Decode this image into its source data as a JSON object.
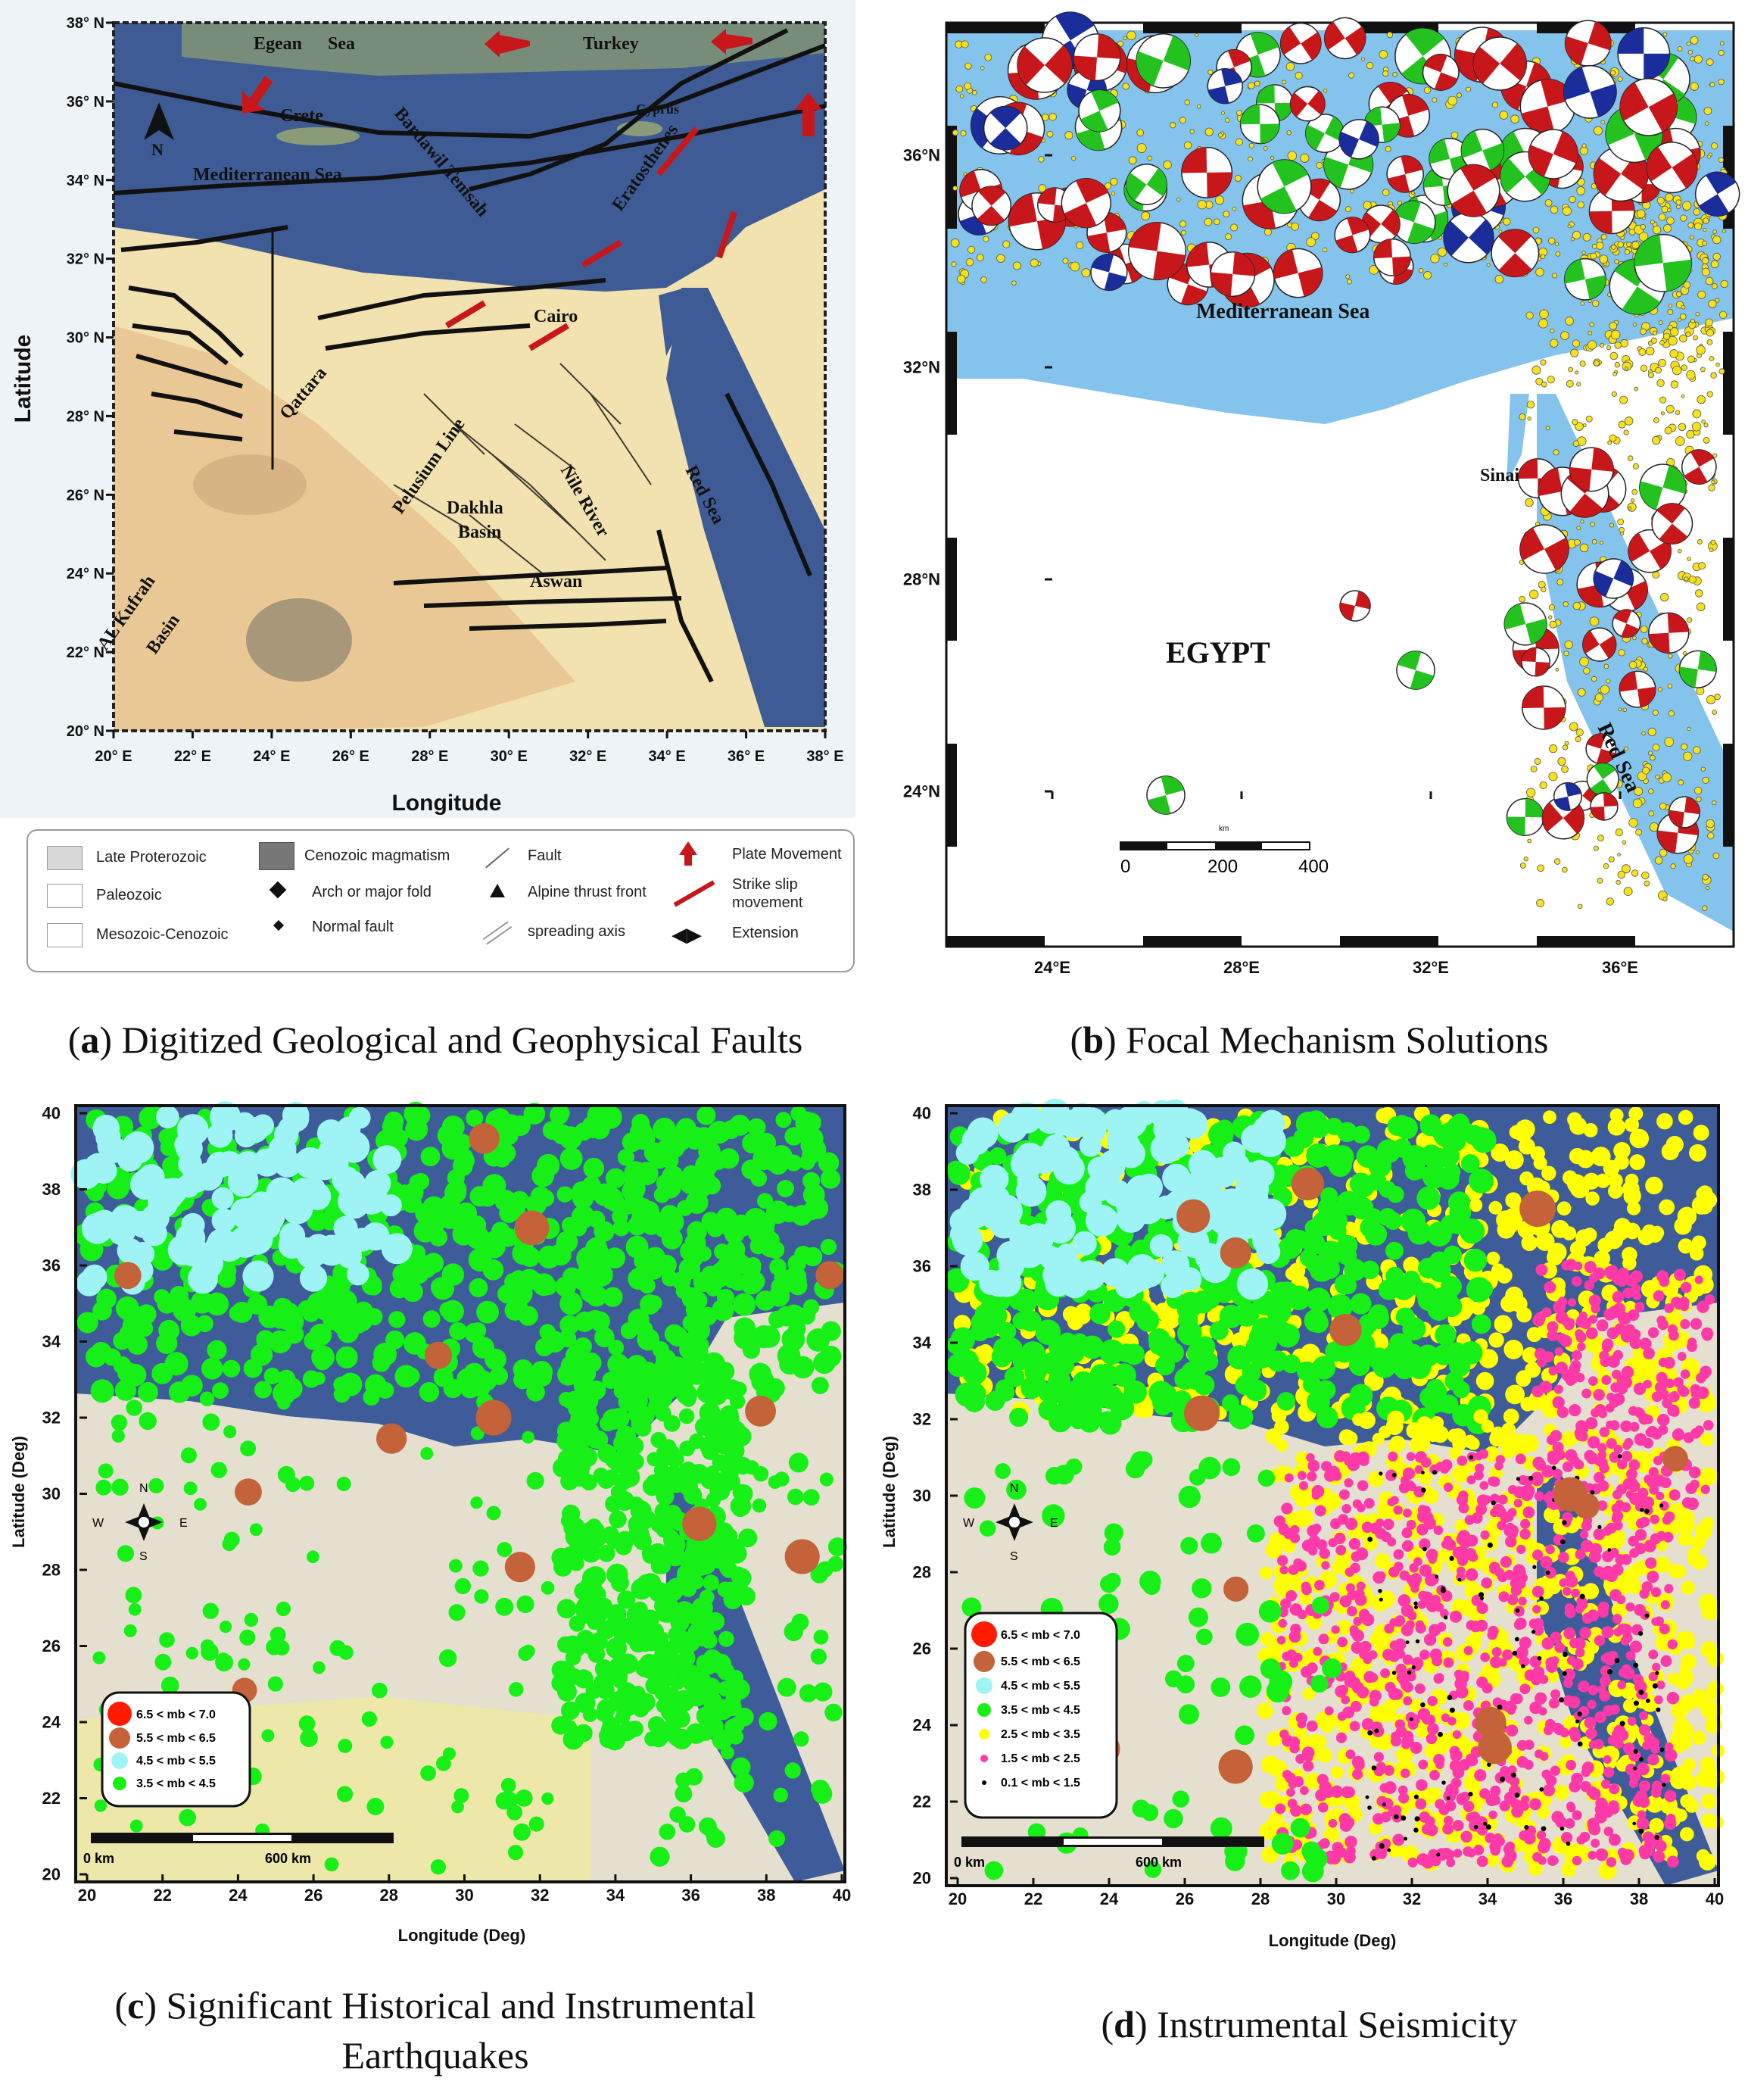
{
  "panels": {
    "a": {
      "caption_letter": "a",
      "caption_text": "Digitized Geological and Geophysical Faults",
      "x_ticks": [
        "20° E",
        "22° E",
        "24° E",
        "26° E",
        "28° E",
        "30° E",
        "32° E",
        "34° E",
        "36° E",
        "38° E"
      ],
      "y_ticks": [
        "38° N",
        "36° N",
        "34° N",
        "32° N",
        "30° N",
        "28° N",
        "26° N",
        "24° N",
        "22° N",
        "20° N"
      ],
      "xlabel": "Longitude",
      "ylabel": "Latitude",
      "north": "N",
      "labels": {
        "egean_sea": "Egean",
        "sea": "Sea",
        "turkey": "Turkey",
        "crete": "Crete",
        "cyprus": "Cyprus",
        "mediterranean": "Mediterranean Sea",
        "bardawil": "Bardawil Temsah",
        "eratosthenes": "Eratosthenes",
        "qattara": "Qattara",
        "cairo": "Cairo",
        "pelusium": "Pelusium Line",
        "nile": "Nile River",
        "red_sea": "Red Sea",
        "dakhla1": "Dakhla",
        "dakhla2": "Basin",
        "aswan": "Aswan",
        "kufrah1": "AL Kufrah",
        "kufrah2": "Basin"
      },
      "legend": [
        "Late Proterozoic",
        "Paleozoic",
        "Mesozoic-Cenozoic",
        "Cenozoic magmatism",
        "Arch or major fold",
        "Normal fault",
        "Fault",
        "Alpine thrust front",
        "spreading axis",
        "Plate Movement",
        "Strike slip",
        "movement",
        "Extension"
      ]
    },
    "b": {
      "caption_letter": "b",
      "caption_text": "Focal Mechanism Solutions",
      "x_ticks": [
        "24°E",
        "28°E",
        "32°E",
        "36°E"
      ],
      "y_ticks": [
        "36°N",
        "32°N",
        "28°N",
        "24°N"
      ],
      "labels": {
        "mediterranean": "Mediterranean Sea",
        "egypt": "EGYPT",
        "sinai": "Sinai",
        "red_sea": "Red Sea"
      },
      "scale": [
        "0",
        "200",
        "400"
      ],
      "scale_unit": "km"
    },
    "c": {
      "caption_letter": "c",
      "caption_line1": "Significant Historical and Instrumental",
      "caption_line2": "Earthquakes",
      "x_ticks": [
        "20",
        "22",
        "24",
        "26",
        "28",
        "30",
        "32",
        "34",
        "36",
        "38",
        "40"
      ],
      "y_ticks": [
        "40",
        "38",
        "36",
        "34",
        "32",
        "30",
        "28",
        "26",
        "24",
        "22",
        "20"
      ],
      "xlabel": "Longitude (Deg)",
      "ylabel": "Latitude (Deg)",
      "compass": [
        "N",
        "E",
        "S",
        "W"
      ],
      "legend": [
        "6.5  < mb <  7.0",
        "5.5  < mb <  6.5",
        "4.5  < mb <  5.5",
        "3.5  < mb <  4.5"
      ],
      "scale": [
        "0 km",
        "600 km"
      ]
    },
    "d": {
      "caption_letter": "d",
      "caption_text": "Instrumental Seismicity",
      "x_ticks": [
        "20",
        "22",
        "24",
        "26",
        "28",
        "30",
        "32",
        "34",
        "36",
        "38",
        "40"
      ],
      "y_ticks": [
        "40",
        "38",
        "36",
        "34",
        "32",
        "30",
        "28",
        "26",
        "24",
        "22",
        "20"
      ],
      "xlabel": "Longitude (Deg)",
      "ylabel": "Latitude (Deg)",
      "compass": [
        "N",
        "E",
        "S",
        "W"
      ],
      "legend": [
        "6.5  < mb <  7.0",
        "5.5  < mb <  6.5",
        "4.5  < mb <  5.5",
        "3.5  < mb <  4.5",
        "2.5  < mb <  3.5",
        "1.5  < mb <  2.5",
        "0.1  < mb <  1.5"
      ],
      "scale": [
        "0 km",
        "600 km"
      ]
    }
  },
  "colors": {
    "sea": "#3f5b95",
    "land": "#f1e6b8",
    "desert": "#e2b488",
    "fault": "#111111",
    "red": "#c8171a",
    "blue": "#1a2d9a",
    "green": "#23c21f",
    "yellow": "#f5e21a",
    "mb70": "#ff1a00",
    "mb65": "#c4623a",
    "mb55": "#9ef4f4",
    "mb45": "#16f016",
    "mb35": "#ffff00",
    "mb25": "#ff3aa8",
    "mb15": "#000000"
  }
}
